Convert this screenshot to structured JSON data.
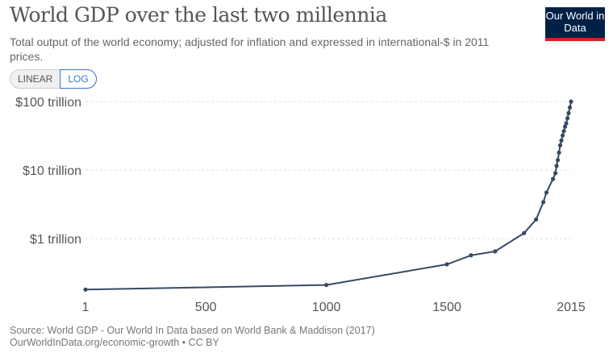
{
  "header": {
    "title": "World GDP over the last two millennia",
    "subtitle": "Total output of the world economy; adjusted for inflation and expressed in international-$ in 2011 prices.",
    "logo": "Our World in Data"
  },
  "scale_toggle": {
    "options": [
      "LINEAR",
      "LOG"
    ],
    "selected": "LOG"
  },
  "colors": {
    "line": "#374a64",
    "grid": "#dddddd",
    "logo_bg": "#002147",
    "logo_accent": "#ce261e",
    "toggle_active": "#3a72c4"
  },
  "chart_data": {
    "type": "line",
    "title": "World GDP over the last two millennia",
    "yscale": "log",
    "grid": "horizontal dashed",
    "xlim": [
      1,
      2015
    ],
    "ylim_trillion": [
      0.15,
      100
    ],
    "x_ticks": [
      "1",
      "500",
      "1000",
      "1500",
      "2015"
    ],
    "y_ticks": [
      {
        "value": 100,
        "label": "$100 trillion"
      },
      {
        "value": 10,
        "label": "$10 trillion"
      },
      {
        "value": 1,
        "label": "$1 trillion"
      }
    ],
    "unit": "trillion international-$ (2011 prices)",
    "series": [
      {
        "x": [
          1,
          1000,
          1500,
          1600,
          1700,
          1820,
          1870,
          1900,
          1913,
          1940,
          1950,
          1955,
          1960,
          1965,
          1970,
          1975,
          1980,
          1985,
          1990,
          1995,
          2000,
          2005,
          2010,
          2015
        ],
        "y": [
          0.18,
          0.21,
          0.42,
          0.57,
          0.65,
          1.2,
          1.9,
          3.4,
          4.7,
          7.4,
          9.0,
          11.5,
          14,
          18,
          23,
          27,
          32,
          37,
          43,
          48,
          57,
          68,
          82,
          100
        ]
      }
    ]
  },
  "footer": {
    "source": "Source: World GDP - Our World In Data based on World Bank & Maddison (2017)",
    "link": "OurWorldInData.org/economic-growth • CC BY"
  }
}
